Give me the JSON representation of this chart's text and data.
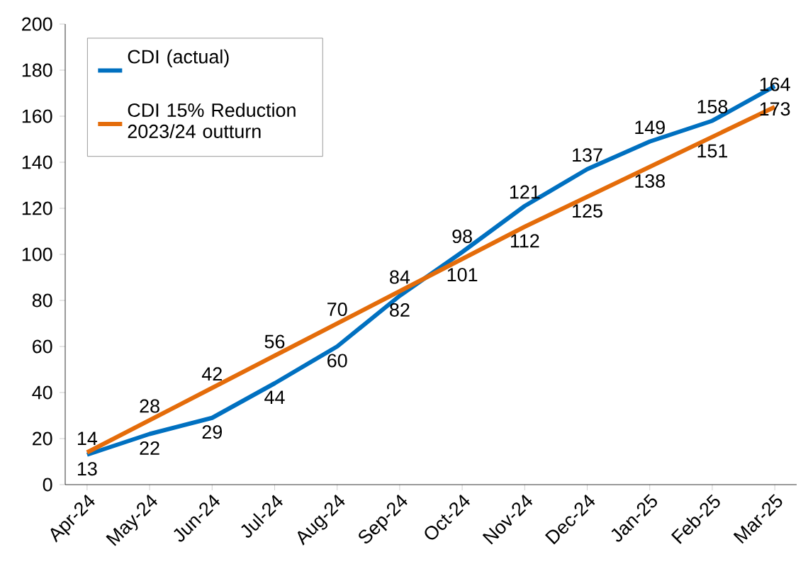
{
  "chart_data": {
    "type": "line",
    "categories": [
      "Apr-24",
      "May-24",
      "Jun-24",
      "Jul-24",
      "Aug-24",
      "Sep-24",
      "Oct-24",
      "Nov-24",
      "Dec-24",
      "Jan-25",
      "Feb-25",
      "Mar-25"
    ],
    "series": [
      {
        "name": "CDI (actual)",
        "color": "#0070c0",
        "values": [
          13,
          22,
          29,
          44,
          60,
          82,
          101,
          121,
          137,
          149,
          158,
          173
        ]
      },
      {
        "name": "CDI 15% Reduction 2023/24 outturn",
        "color": "#e46c0a",
        "values": [
          14,
          28,
          42,
          56,
          70,
          84,
          98,
          112,
          125,
          138,
          151,
          164
        ]
      }
    ],
    "ylim": [
      0,
      200
    ],
    "yticks": [
      0,
      20,
      40,
      60,
      80,
      100,
      120,
      140,
      160,
      180,
      200
    ],
    "grid": false,
    "legend": "top left",
    "data_labels": true,
    "marker": "none",
    "line_style": "solid"
  }
}
